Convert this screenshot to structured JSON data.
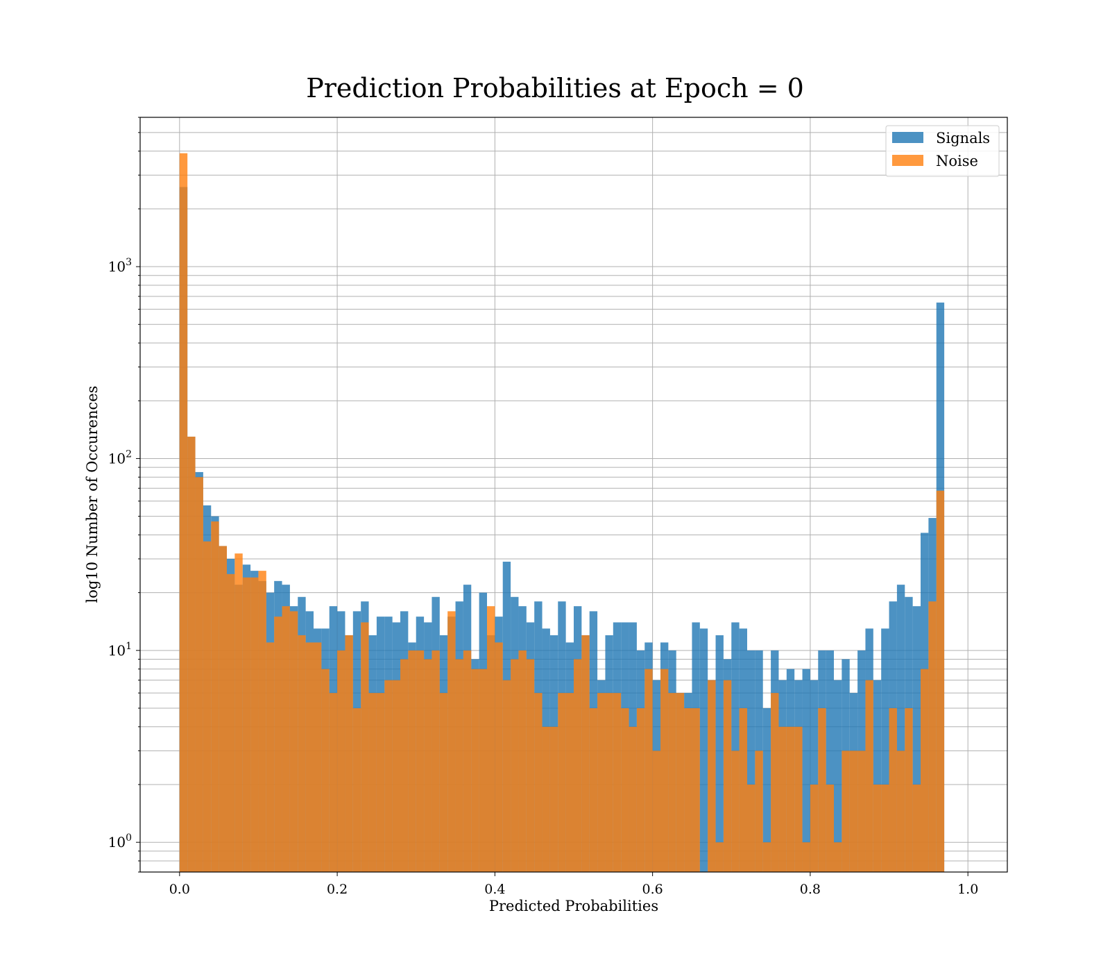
{
  "chart_data": {
    "type": "bar",
    "title": "Prediction Probabilities at Epoch = 0",
    "xlabel": "Predicted Probabilities",
    "ylabel": "log10 Number of Occurences",
    "yscale": "log",
    "xlim": [
      -0.05,
      1.05
    ],
    "ylim": [
      0.7,
      6000
    ],
    "grid": true,
    "legend_position": "top-right",
    "x_ticks": [
      0.0,
      0.2,
      0.4,
      0.6,
      0.8,
      1.0
    ],
    "x_tick_labels": [
      "0.0",
      "0.2",
      "0.4",
      "0.6",
      "0.8",
      "1.0"
    ],
    "y_ticks": [
      {
        "value": 1,
        "base": "10",
        "exp": "0"
      },
      {
        "value": 10,
        "base": "10",
        "exp": "1"
      },
      {
        "value": 100,
        "base": "10",
        "exp": "2"
      },
      {
        "value": 1000,
        "base": "10",
        "exp": "3"
      }
    ],
    "bin_edges_range": [
      0,
      1
    ],
    "bin_count": 100,
    "series": [
      {
        "name": "Signals",
        "color": "#1f77b4",
        "values": [
          2600,
          130,
          85,
          57,
          50,
          35,
          30,
          22,
          28,
          26,
          23,
          20,
          23,
          22,
          17,
          19,
          16,
          13,
          13,
          17,
          16,
          12,
          16,
          18,
          12,
          15,
          15,
          14,
          16,
          11,
          15,
          14,
          19,
          12,
          15,
          18,
          22,
          9,
          20,
          12,
          15,
          29,
          19,
          17,
          14,
          18,
          13,
          12,
          18,
          11,
          17,
          12,
          16,
          7,
          12,
          14,
          14,
          14,
          10,
          11,
          7,
          11,
          10,
          6,
          6,
          14,
          13,
          7,
          12,
          9,
          14,
          13,
          10,
          10,
          5,
          10,
          7,
          8,
          7,
          8,
          7,
          10,
          10,
          7,
          9,
          6,
          10,
          13,
          7,
          13,
          18,
          22,
          19,
          17,
          41,
          49,
          650,
          0,
          0,
          0
        ]
      },
      {
        "name": "Noise",
        "color": "#ff7f0e",
        "values": [
          3900,
          130,
          80,
          37,
          47,
          35,
          25,
          32,
          24,
          24,
          26,
          11,
          15,
          17,
          16,
          12,
          11,
          11,
          8,
          6,
          10,
          12,
          5,
          14,
          6,
          6,
          7,
          7,
          9,
          10,
          10,
          9,
          10,
          6,
          16,
          9,
          10,
          8,
          8,
          17,
          11,
          7,
          9,
          10,
          9,
          6,
          4,
          4,
          6,
          6,
          9,
          12,
          5,
          6,
          6,
          6,
          5,
          4,
          5,
          8,
          3,
          8,
          6,
          6,
          5,
          5,
          0,
          7,
          1,
          7,
          3,
          5,
          2,
          3,
          1,
          6,
          4,
          4,
          4,
          1,
          2,
          5,
          2,
          1,
          3,
          3,
          3,
          7,
          2,
          2,
          5,
          3,
          5,
          2,
          8,
          18,
          68,
          0,
          0,
          0
        ]
      }
    ]
  }
}
